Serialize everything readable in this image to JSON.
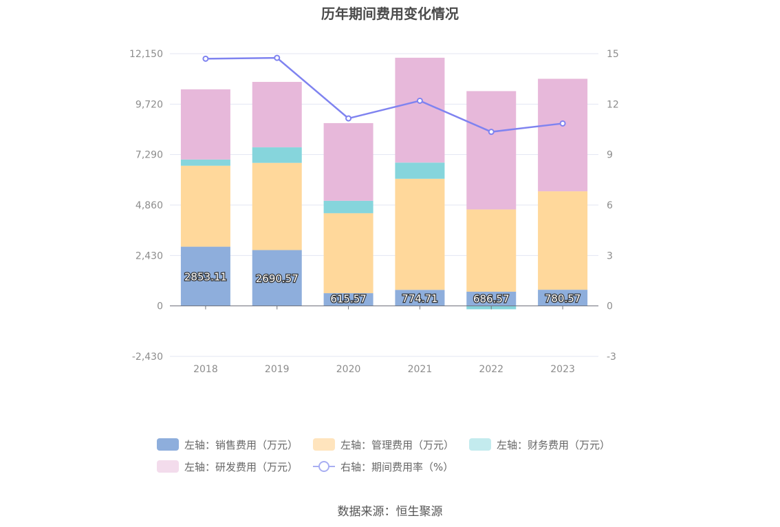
{
  "title": "历年期间费用变化情况",
  "source": "数据来源：恒生聚源",
  "chart_data": {
    "type": "bar",
    "stacked": true,
    "categories": [
      "2018",
      "2019",
      "2020",
      "2021",
      "2022",
      "2023"
    ],
    "series": [
      {
        "name": "左轴：销售费用（万元）",
        "axis": "left",
        "type": "bar",
        "color": "#8eaedc",
        "values": [
          2853.11,
          2690.57,
          615.57,
          774.71,
          686.57,
          780.57
        ],
        "labels": [
          "2853.11",
          "2690.57",
          "615.57",
          "774.71",
          "686.57",
          "780.57"
        ]
      },
      {
        "name": "左轴：管理费用（万元）",
        "axis": "left",
        "type": "bar",
        "color": "#ffd89b",
        "values": [
          3900,
          4200,
          3850,
          5350,
          3960,
          4740
        ]
      },
      {
        "name": "左轴：财务费用（万元）",
        "axis": "left",
        "type": "bar",
        "color": "#86d5dc",
        "values": [
          300,
          750,
          600,
          780,
          -160,
          0
        ]
      },
      {
        "name": "左轴：研发费用（万元）",
        "axis": "left",
        "type": "bar",
        "color": "#e7b8da",
        "values": [
          3380,
          3150,
          3740,
          5050,
          5700,
          5420
        ]
      },
      {
        "name": "右轴：期间费用率（%）",
        "axis": "right",
        "type": "line",
        "color": "#7f83f0",
        "values": [
          14.7,
          14.75,
          11.15,
          12.2,
          10.35,
          10.85
        ]
      }
    ],
    "left_axis": {
      "ticks": [
        "12,150",
        "9,720",
        "7,290",
        "4,860",
        "2,430",
        "0",
        "-2,430"
      ],
      "range": [
        -2430,
        12150
      ]
    },
    "right_axis": {
      "ticks": [
        "15",
        "12",
        "9",
        "6",
        "3",
        "0",
        "-3"
      ],
      "range": [
        -3,
        15
      ]
    },
    "grid": true,
    "legend_position": "bottom"
  },
  "legend": {
    "row1": [
      "左轴：销售费用（万元）",
      "左轴：管理费用（万元）",
      "左轴：财务费用（万元）"
    ],
    "row2": [
      "左轴：研发费用（万元）",
      "右轴：期间费用率（%）"
    ]
  }
}
